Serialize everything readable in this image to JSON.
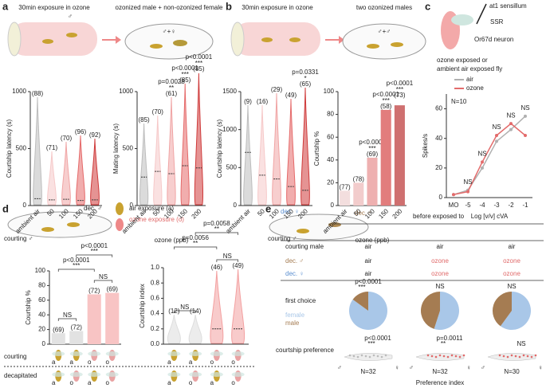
{
  "figure": {
    "panels": [
      "a",
      "b",
      "c",
      "d",
      "e"
    ],
    "a": {
      "left": "30min exposure in ozone",
      "right": "ozonized male + non-ozonized female",
      "male": "♂",
      "pair": "♂+♀"
    },
    "b": {
      "left": "30min exposure in ozone",
      "right": "two ozonized males",
      "pair": "♂+♂"
    },
    "c": {
      "sensillum": "at1 sensillum",
      "ssr": "SSR",
      "neuron": "Or67d neuron",
      "caption": [
        "ozone exposed or",
        "ambient air exposed fly"
      ]
    },
    "d": {
      "target": "dec. ♂",
      "courting": "courting ♂",
      "air": "air exposure (a)",
      "ozone": "ozone exposure (o)",
      "row_courting": "courting",
      "row_decapitated": "decapitated",
      "courting_flies": [
        "a",
        "a",
        "o",
        "o"
      ],
      "decapitated_flies": [
        "a",
        "o",
        "a",
        "o"
      ]
    },
    "e": {
      "female_target": "dec. ♀",
      "male_target": "dec.♂",
      "courting": "courting ♂",
      "header": "before exposed to",
      "rows": [
        [
          "courting male",
          "air",
          "air",
          "air"
        ],
        [
          "dec. ♂",
          "air",
          "ozone",
          "ozone"
        ],
        [
          "dec. ♀",
          "air",
          "ozone",
          "ozone"
        ]
      ],
      "first_choice": "first choice",
      "courtship_preference": "courtship preference",
      "xlabel": "Preference index",
      "n": [
        "N=32",
        "N=32",
        "N=30"
      ],
      "p": [
        "p<0.0001",
        "p=0.0011",
        "NS"
      ],
      "stars": [
        "***",
        "**",
        null
      ],
      "ends": [
        "♂",
        "♀"
      ]
    }
  },
  "chart_data": [
    {
      "type": "violin",
      "ylabel": "Courtship latency (s)",
      "categories": [
        "ambient air",
        "50",
        "100",
        "150",
        "200"
      ],
      "values": [
        60,
        50,
        55,
        45,
        50
      ],
      "colors": [
        "#bdbdbd",
        "#f6c9c9",
        "#f0a5a5",
        "#e56a6a",
        "#cf3b3b"
      ],
      "n_labels": [
        "(88)",
        "(71)",
        "(70)",
        "(96)",
        "(92)"
      ],
      "ylim": [
        0,
        1000
      ],
      "yticks": [
        0,
        500,
        1000
      ]
    },
    {
      "type": "violin",
      "ylabel": "Mating latency (s)",
      "xlabel": "ozone (ppb)",
      "categories": [
        "ambient air",
        "50",
        "100",
        "150",
        "200"
      ],
      "values": [
        250,
        300,
        280,
        350,
        330
      ],
      "colors": [
        "#bdbdbd",
        "#f6c9c9",
        "#f0a5a5",
        "#e56a6a",
        "#cf3b3b"
      ],
      "n_labels": [
        "(85)",
        "(70)",
        "(61)",
        "(85)",
        "(85)"
      ],
      "p_labels": [
        null,
        null,
        "p=0.0028",
        "p<0.0001",
        "p<0.0001"
      ],
      "stars": [
        null,
        null,
        "**",
        "***",
        "***"
      ],
      "ylim": [
        0,
        1000
      ],
      "yticks": [
        0,
        500,
        1000
      ]
    },
    {
      "type": "violin",
      "ylabel": "Courtship latency (s)",
      "categories": [
        "ambient air",
        "50",
        "100",
        "150",
        "200"
      ],
      "values": [
        700,
        400,
        350,
        250,
        200
      ],
      "colors": [
        "#bdbdbd",
        "#f6c9c9",
        "#f0a5a5",
        "#e56a6a",
        "#cf3b3b"
      ],
      "n_labels": [
        "(9)",
        "(16)",
        "(29)",
        "(49)",
        "(65)"
      ],
      "p_labels": [
        null,
        null,
        null,
        null,
        "p=0.0331"
      ],
      "stars": [
        null,
        null,
        null,
        null,
        "*"
      ],
      "ylim": [
        0,
        1500
      ],
      "yticks": [
        0,
        500,
        1000,
        1500
      ]
    },
    {
      "type": "bar",
      "ylabel": "Courtship %",
      "xlabel": "ozone (ppb)",
      "categories": [
        "ambient air",
        "50",
        "100",
        "150",
        "200"
      ],
      "values": [
        13,
        20,
        42,
        84,
        88
      ],
      "colors": [
        "#f3dede",
        "#f2cccc",
        "#eeb0b0",
        "#e27d7d",
        "#cf7070"
      ],
      "n_labels": [
        "(77)",
        "(78)",
        "(69)",
        "(58)",
        "(73)"
      ],
      "p_labels": [
        null,
        null,
        "p<0.0001",
        "p<0.0001",
        "p<0.0001"
      ],
      "stars": [
        null,
        null,
        "***",
        "***",
        "***"
      ],
      "ylim": [
        0,
        100
      ],
      "yticks": [
        0,
        20,
        40,
        60,
        80,
        100
      ]
    },
    {
      "type": "line",
      "ylabel": "Spikes/s",
      "xlabel": "Log [v/v] cVA",
      "categories": [
        "MO",
        "-5",
        "-4",
        "-3",
        "-2",
        "-1"
      ],
      "series": [
        {
          "name": "air",
          "color": "#b0b0b0",
          "values": [
            2,
            5,
            20,
            38,
            46,
            55
          ]
        },
        {
          "name": "ozone",
          "color": "#e36b6b",
          "values": [
            2,
            4,
            24,
            42,
            50,
            42
          ]
        }
      ],
      "point_labels": [
        null,
        "NS",
        "NS",
        "NS",
        "NS",
        "NS"
      ],
      "annotation": "N=10",
      "ylim": [
        0,
        70
      ],
      "yticks": [
        0,
        20,
        40,
        60
      ]
    },
    {
      "type": "bar",
      "ylabel": "Courtship %",
      "values": [
        15,
        18,
        68,
        70
      ],
      "colors": [
        "#e2e2e2",
        "#e2e2e2",
        "#f8c4c4",
        "#f8c4c4"
      ],
      "n_labels": [
        "(69)",
        "(72)",
        "(72)",
        "(69)"
      ],
      "comparisons": [
        {
          "p": "NS"
        },
        {
          "p": "p<0.0001",
          "stars": "***"
        },
        {
          "p": "p<0.0001",
          "stars": "***"
        },
        {
          "p": "NS"
        }
      ],
      "ylim": [
        0,
        100
      ],
      "yticks": [
        0,
        20,
        40,
        60,
        80,
        100
      ]
    },
    {
      "type": "violin",
      "ylabel": "Courtship index",
      "values": [
        0,
        0,
        0.2,
        0.2
      ],
      "colors": [
        "#dddddd",
        "#dddddd",
        "#f3a0a0",
        "#f3a0a0"
      ],
      "n_labels": [
        "(12)",
        "(14)",
        "(46)",
        "(49)"
      ],
      "comparisons": [
        {
          "p": "NS"
        },
        {
          "p": "p=0.0056",
          "stars": "**"
        },
        {
          "p": "p=0.0058",
          "stars": "**"
        },
        {
          "p": "NS"
        }
      ],
      "ylim": [
        0,
        1
      ],
      "yticks": [
        {
          "value": 0,
          "label": "0.0"
        },
        0.2,
        0.4,
        0.6,
        0.8,
        {
          "value": 1,
          "label": "1.0"
        }
      ]
    },
    {
      "type": "pie",
      "categories": [
        "female",
        "male"
      ],
      "colors": [
        "#a9c7e8",
        "#a57c52"
      ],
      "pies": [
        {
          "values": [
            85,
            15
          ],
          "p_label": "p<0.0001",
          "stars": "***"
        },
        {
          "values": [
            55,
            45
          ],
          "p_label": "NS"
        },
        {
          "values": [
            60,
            40
          ],
          "p_label": "NS"
        }
      ]
    }
  ]
}
